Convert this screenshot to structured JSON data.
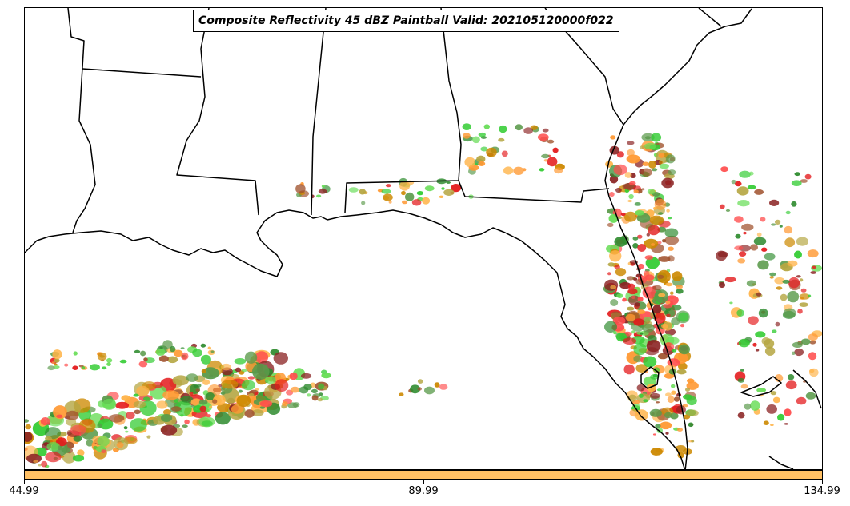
{
  "title": "Composite Reflectivity 45 dBZ Paintball Valid: 202105120000f022",
  "colorbar": {
    "color": "#ffc065",
    "ticks": [
      "44.99",
      "89.99",
      "134.99"
    ]
  },
  "map": {
    "region": "U.S. Gulf Coast and Florida",
    "member_colors": [
      "#e41a1c",
      "#ff4d4d",
      "#2e8b2e",
      "#5a9a4a",
      "#33cc33",
      "#66dd55",
      "#ff9933",
      "#ffb347",
      "#b5a642",
      "#cc8800",
      "#8b2323",
      "#a0522d"
    ]
  }
}
